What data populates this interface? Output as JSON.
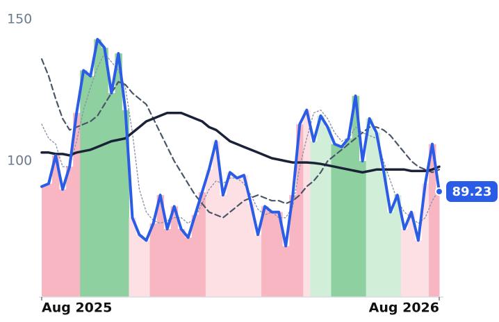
{
  "chart_data": {
    "type": "line",
    "categories": [
      "Aug 2025",
      null,
      null,
      null,
      null,
      null,
      null,
      null,
      null,
      null,
      null,
      null,
      null,
      null,
      null,
      null,
      null,
      null,
      null,
      null,
      null,
      null,
      null,
      null,
      null,
      null,
      null,
      null,
      null,
      null,
      null,
      null,
      null,
      null,
      null,
      null,
      null,
      null,
      null,
      null,
      null,
      null,
      null,
      null,
      null,
      null,
      null,
      null,
      null,
      null,
      null,
      null,
      null,
      null,
      null,
      null,
      null,
      "Aug 2026"
    ],
    "series": [
      {
        "color": "#2b5ce6",
        "values": [
          91,
          92,
          102,
          90,
          98,
          117,
          132,
          130,
          143,
          140,
          124,
          138,
          118,
          80,
          74,
          72,
          78,
          88,
          76,
          84,
          76,
          73,
          81,
          89,
          97,
          107,
          88,
          96,
          94,
          95,
          85,
          74,
          84,
          82,
          82,
          70,
          88,
          113,
          118,
          107,
          116,
          112,
          106,
          105,
          108,
          123,
          100,
          115,
          110,
          97,
          82,
          88,
          76,
          82,
          72,
          92,
          106,
          89.23
        ]
      },
      {
        "color": "#1a2238",
        "values": [
          103,
          103,
          102.5,
          102.5,
          102,
          103,
          103.5,
          104,
          105,
          106,
          107,
          107.5,
          108,
          110,
          112,
          114,
          115,
          116,
          117,
          117,
          117,
          116,
          115,
          114,
          112,
          111,
          109,
          107,
          106,
          105,
          104,
          103,
          102,
          101,
          100.5,
          100,
          99.5,
          99.5,
          99.5,
          99.3,
          99,
          98.5,
          98,
          97.5,
          97,
          96.5,
          96,
          96.5,
          97,
          97,
          97,
          97,
          97,
          96.5,
          96.5,
          96.5,
          97,
          98
        ]
      },
      {
        "color": "#4a5568",
        "values": [
          136,
          130,
          122,
          115,
          111,
          112,
          113,
          114,
          116,
          120,
          124,
          128,
          127,
          124,
          122,
          120,
          115,
          110,
          105,
          100,
          96,
          92,
          88,
          85,
          82,
          81,
          80,
          82,
          84,
          86,
          87,
          88,
          87,
          86,
          86,
          85,
          86,
          88,
          91,
          93,
          96,
          100,
          102,
          104,
          106,
          108,
          110,
          112,
          112,
          111,
          109,
          106,
          103,
          100,
          98,
          97,
          96,
          97
        ]
      },
      {
        "color": "#8a95a8",
        "values": [
          113,
          108,
          106,
          98,
          98,
          107,
          118,
          126,
          133,
          138,
          135,
          132,
          126,
          110,
          90,
          82,
          79,
          78,
          79,
          80,
          80,
          78,
          80,
          85,
          90,
          93,
          92,
          94,
          94,
          92,
          88,
          83,
          81,
          82,
          80,
          80,
          84,
          98,
          108,
          117,
          118,
          115,
          110,
          107,
          108,
          112,
          110,
          109,
          108,
          100,
          93,
          86,
          82,
          80,
          78,
          80,
          86,
          90
        ]
      }
    ],
    "bar_colors": [
      "#f7b6c2",
      "#f7b6c2",
      "#f7b6c2",
      "#f7b6c2",
      "#f7b6c2",
      "#f7b6c2",
      "#8fd0a0",
      "#8fd0a0",
      "#8fd0a0",
      "#8fd0a0",
      "#8fd0a0",
      "#8fd0a0",
      "#8fd0a0",
      "#fde0e4",
      "#fde0e4",
      "#fde0e4",
      "#f7b6c2",
      "#f7b6c2",
      "#f7b6c2",
      "#f7b6c2",
      "#f7b6c2",
      "#f7b6c2",
      "#f7b6c2",
      "#f7b6c2",
      "#fde0e4",
      "#fde0e4",
      "#fde0e4",
      "#fde0e4",
      "#fde0e4",
      "#fde0e4",
      "#fde0e4",
      "#fde0e4",
      "#f7b6c2",
      "#f7b6c2",
      "#f7b6c2",
      "#f7b6c2",
      "#f7b6c2",
      "#f7b6c2",
      "#fde0e4",
      "#d0eed8",
      "#d0eed8",
      "#d0eed8",
      "#8fd0a0",
      "#8fd0a0",
      "#8fd0a0",
      "#8fd0a0",
      "#8fd0a0",
      "#d0eed8",
      "#d0eed8",
      "#d0eed8",
      "#d0eed8",
      "#d0eed8",
      "#fde0e4",
      "#fde0e4",
      "#fde0e4",
      "#fde0e4",
      "#f7b6c2",
      "#f7b6c2"
    ],
    "ylim": [
      52,
      150
    ],
    "yticks": [
      100,
      150
    ],
    "grid": false
  }
}
